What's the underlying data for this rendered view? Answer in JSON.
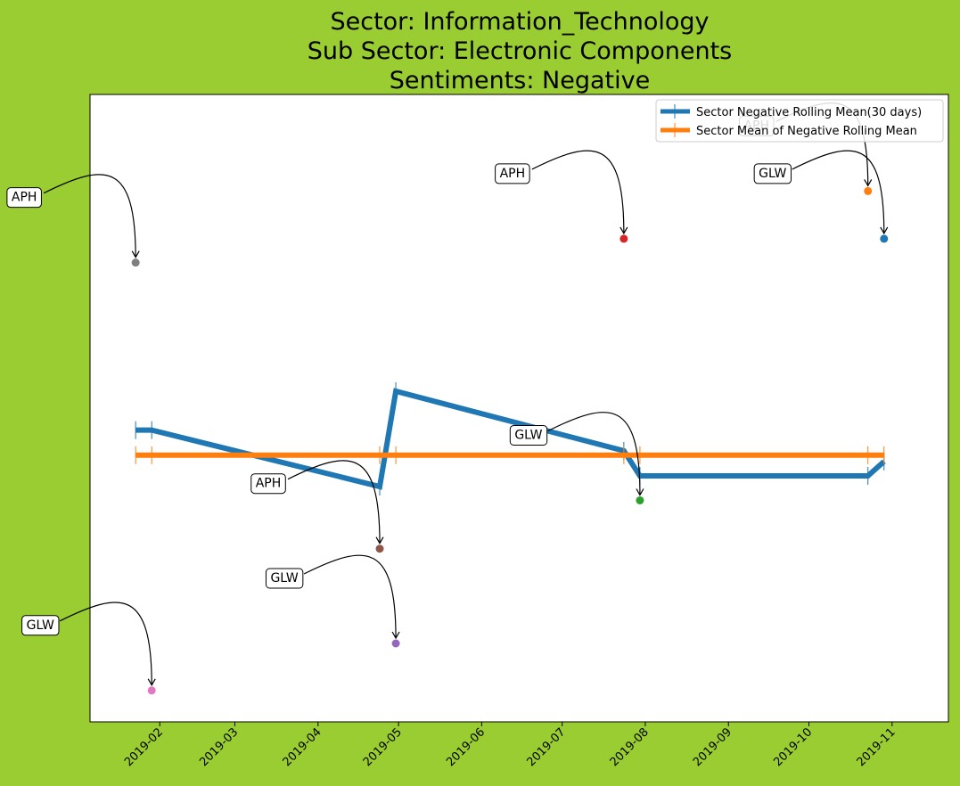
{
  "chart_data": {
    "type": "line",
    "title_lines": [
      "Sector:  Information_Technology",
      "Sub Sector:  Electronic Components",
      "Sentiments:  Negative"
    ],
    "xlabel": "",
    "ylabel": "",
    "grid": false,
    "legend_placement": "top-right",
    "x_ticks": [
      "2019-02",
      "2019-03",
      "2019-04",
      "2019-05",
      "2019-06",
      "2019-07",
      "2019-08",
      "2019-09",
      "2019-10",
      "2019-11"
    ],
    "xlim": [
      "2019-01-06",
      "2019-11-22"
    ],
    "ylim": [
      0,
      1
    ],
    "series": [
      {
        "name": "Sector Negative Rolling Mean(30 days)",
        "color": "#1f77b4",
        "points": [
          {
            "x": "2019-01-23",
            "y": 0.465
          },
          {
            "x": "2019-01-29",
            "y": 0.465
          },
          {
            "x": "2019-04-24",
            "y": 0.375
          },
          {
            "x": "2019-04-30",
            "y": 0.527
          },
          {
            "x": "2019-07-24",
            "y": 0.432
          },
          {
            "x": "2019-07-30",
            "y": 0.392
          },
          {
            "x": "2019-10-23",
            "y": 0.392
          },
          {
            "x": "2019-10-29",
            "y": 0.415
          }
        ]
      },
      {
        "name": "Sector Mean of Negative Rolling Mean",
        "color": "#ff7f0e",
        "points": [
          {
            "x": "2019-01-23",
            "y": 0.425
          },
          {
            "x": "2019-01-29",
            "y": 0.425
          },
          {
            "x": "2019-04-24",
            "y": 0.425
          },
          {
            "x": "2019-04-30",
            "y": 0.425
          },
          {
            "x": "2019-07-24",
            "y": 0.425
          },
          {
            "x": "2019-07-30",
            "y": 0.425
          },
          {
            "x": "2019-10-23",
            "y": 0.425
          },
          {
            "x": "2019-10-29",
            "y": 0.425
          }
        ]
      }
    ],
    "points": [
      {
        "label": "APH",
        "x": "2019-01-23",
        "y": 0.732,
        "color": "#7f7f7f"
      },
      {
        "label": "GLW",
        "x": "2019-01-29",
        "y": 0.05,
        "color": "#e377c2"
      },
      {
        "label": "APH",
        "x": "2019-04-24",
        "y": 0.276,
        "color": "#8c564b"
      },
      {
        "label": "GLW",
        "x": "2019-04-30",
        "y": 0.125,
        "color": "#9467bd"
      },
      {
        "label": "APH",
        "x": "2019-07-24",
        "y": 0.77,
        "color": "#d62728"
      },
      {
        "label": "GLW",
        "x": "2019-07-30",
        "y": 0.353,
        "color": "#2ca02c"
      },
      {
        "label": "APH",
        "x": "2019-10-23",
        "y": 0.846,
        "color": "#ff7f0e"
      },
      {
        "label": "GLW",
        "x": "2019-10-29",
        "y": 0.77,
        "color": "#1f77b4"
      }
    ]
  }
}
